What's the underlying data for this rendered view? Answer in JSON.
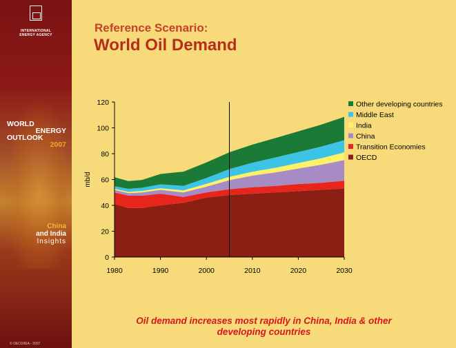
{
  "sidebar": {
    "org_line1": "INTERNATIONAL",
    "org_line2": "ENERGY AGENCY",
    "weo_line1": "WORLD",
    "weo_line2": "ENERGY",
    "weo_line3": "OUTLOOK",
    "weo_year": "2007",
    "ci_line1": "China",
    "ci_line2": "and India",
    "ci_line3": "Insights",
    "copyright": "© OECD/IEA - 2007"
  },
  "header": {
    "subtitle": "Reference Scenario:",
    "title": "World Oil Demand"
  },
  "caption": {
    "line1": "Oil demand increases most rapidly in China, India & other",
    "line2": "developing countries"
  },
  "colors": {
    "page_background": "#f7da79",
    "OECD": "#8b1f14",
    "Transition Economies": "#e8251d",
    "China": "#a78bc4",
    "India": "#fff06a",
    "Middle East": "#3cc3e6",
    "Other developing countries": "#1a7a36"
  },
  "chart_data": {
    "type": "area",
    "ylabel": "mb/d",
    "xlabel": "",
    "ylim": [
      0,
      120
    ],
    "xlim": [
      1980,
      2030
    ],
    "yticks": [
      0,
      20,
      40,
      60,
      80,
      100,
      120
    ],
    "xticks": [
      1980,
      1990,
      2000,
      2010,
      2020,
      2030
    ],
    "projection_start": 2005,
    "grid": false,
    "legend_position": "right",
    "stacked": true,
    "x": [
      1980,
      1983,
      1986,
      1990,
      1995,
      2000,
      2005,
      2010,
      2015,
      2020,
      2025,
      2030
    ],
    "series": [
      {
        "name": "OECD",
        "values": [
          41,
          38,
          38,
          40,
          42,
          46,
          48,
          49,
          50,
          51,
          52,
          53
        ]
      },
      {
        "name": "Transition Economies",
        "values": [
          9,
          9.5,
          9.5,
          9,
          4.5,
          4,
          4.5,
          5,
          5,
          5.5,
          5.5,
          6
        ]
      },
      {
        "name": "China",
        "values": [
          2,
          2,
          2.5,
          3,
          3.5,
          4.5,
          7,
          9,
          10.5,
          12,
          14,
          16
        ]
      },
      {
        "name": "India",
        "values": [
          0.8,
          1,
          1.2,
          1.3,
          1.6,
          2.2,
          2.6,
          3,
          3.6,
          4.3,
          5,
          6
        ]
      },
      {
        "name": "Middle East",
        "values": [
          2,
          2.3,
          2.5,
          3,
          3.5,
          4.5,
          6,
          7,
          8,
          8.5,
          9,
          9.5
        ]
      },
      {
        "name": "Other developing countries",
        "values": [
          7,
          6,
          6,
          8,
          11,
          12,
          13,
          14,
          15,
          16,
          17,
          18
        ]
      }
    ],
    "legend_order": [
      "Other developing countries",
      "Middle East",
      "India",
      "China",
      "Transition Economies",
      "OECD"
    ]
  }
}
